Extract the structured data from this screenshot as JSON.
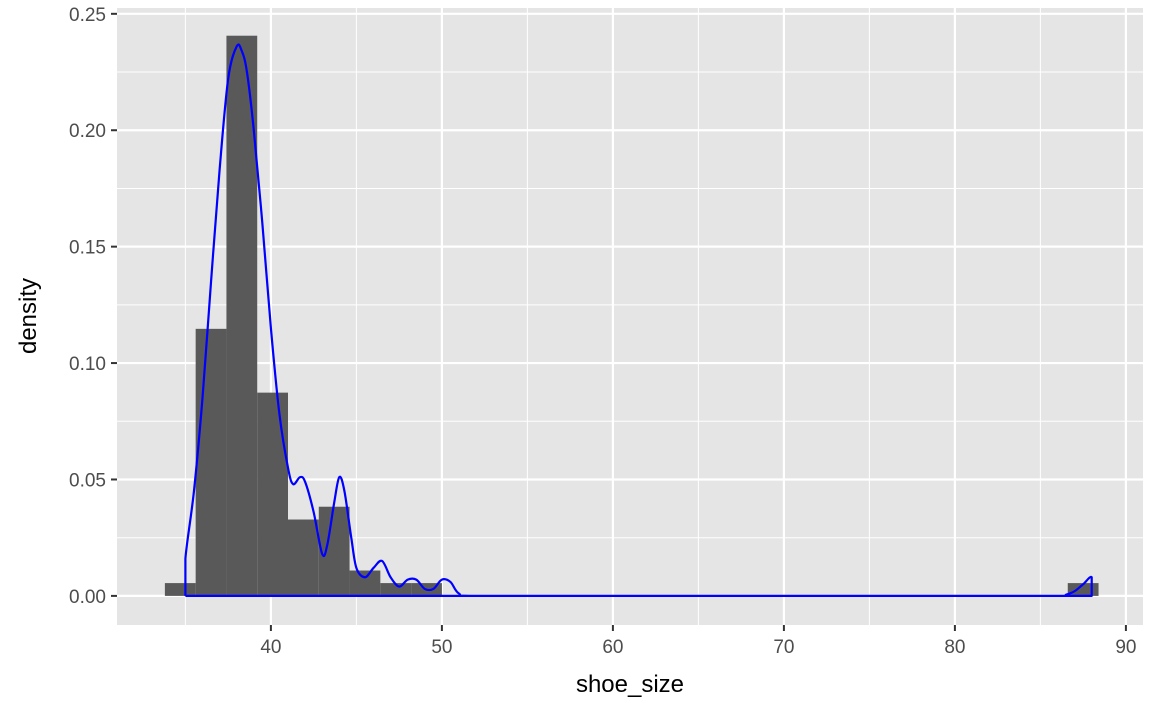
{
  "chart_data": {
    "type": "bar",
    "title": "",
    "xlabel": "shoe_size",
    "ylabel": "density",
    "xlim": [
      31,
      91
    ],
    "ylim": [
      -0.0125,
      0.2525
    ],
    "x_ticks": [
      40,
      50,
      60,
      70,
      80,
      90
    ],
    "y_ticks": [
      0.0,
      0.05,
      0.1,
      0.15,
      0.2,
      0.25
    ],
    "x_tick_labels": [
      "40",
      "50",
      "60",
      "70",
      "80",
      "90"
    ],
    "y_tick_labels": [
      "0.00",
      "0.05",
      "0.10",
      "0.15",
      "0.20",
      "0.25"
    ],
    "grid": true,
    "legend": "none",
    "colors": {
      "panel_background": "#e5e5e5",
      "grid": "#ffffff",
      "bars": "#595959",
      "density_line": "#0000ff",
      "tick_text": "#4d4d4d",
      "axis_title_text": "#000000"
    },
    "histogram": {
      "bin_width": 1.8,
      "bins": [
        {
          "x_start": 33.8,
          "x_end": 35.6,
          "density": 0.0055
        },
        {
          "x_start": 35.6,
          "x_end": 37.4,
          "density": 0.1147
        },
        {
          "x_start": 37.4,
          "x_end": 39.2,
          "density": 0.2406
        },
        {
          "x_start": 39.2,
          "x_end": 41.0,
          "density": 0.0873
        },
        {
          "x_start": 41.0,
          "x_end": 42.8,
          "density": 0.0328
        },
        {
          "x_start": 42.8,
          "x_end": 44.6,
          "density": 0.0383
        },
        {
          "x_start": 44.6,
          "x_end": 46.4,
          "density": 0.0109
        },
        {
          "x_start": 46.4,
          "x_end": 48.2,
          "density": 0.0055
        },
        {
          "x_start": 48.2,
          "x_end": 50.0,
          "density": 0.0055
        },
        {
          "x_start": 86.6,
          "x_end": 88.4,
          "density": 0.0055
        }
      ]
    },
    "density_curve": {
      "x": [
        35.0,
        35.0,
        35.5,
        36.0,
        36.5,
        37.0,
        37.5,
        38.0,
        38.3,
        38.6,
        39.0,
        39.5,
        40.0,
        40.5,
        41.0,
        41.3,
        41.7,
        42.0,
        42.5,
        43.0,
        43.3,
        43.7,
        44.0,
        44.3,
        44.7,
        45.0,
        45.5,
        46.0,
        46.5,
        47.0,
        47.5,
        48.0,
        48.5,
        49.0,
        49.5,
        50.0,
        50.5,
        51.0,
        52.0,
        60.0,
        70.0,
        80.0,
        86.0,
        86.5,
        87.0,
        87.5,
        88.0,
        88.0,
        35.0
      ],
      "y": [
        0.0,
        0.016,
        0.045,
        0.085,
        0.135,
        0.183,
        0.222,
        0.236,
        0.234,
        0.225,
        0.2,
        0.16,
        0.115,
        0.078,
        0.055,
        0.048,
        0.051,
        0.049,
        0.036,
        0.018,
        0.022,
        0.04,
        0.051,
        0.045,
        0.025,
        0.012,
        0.008,
        0.012,
        0.015,
        0.008,
        0.004,
        0.007,
        0.007,
        0.003,
        0.003,
        0.007,
        0.006,
        0.001,
        0.0,
        0.0,
        0.0,
        0.0,
        0.0,
        0.0005,
        0.002,
        0.005,
        0.008,
        0.0,
        0.0
      ]
    }
  }
}
